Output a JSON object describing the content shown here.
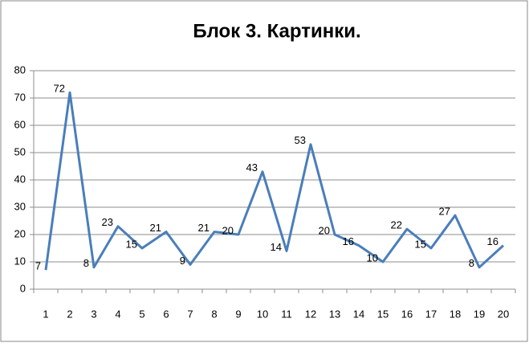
{
  "chart_data": {
    "type": "line",
    "title": "Блок 3. Картинки.",
    "categories": [
      1,
      2,
      3,
      4,
      5,
      6,
      7,
      8,
      9,
      10,
      11,
      12,
      13,
      14,
      15,
      16,
      17,
      18,
      19,
      20
    ],
    "values": [
      7,
      72,
      8,
      23,
      15,
      21,
      9,
      21,
      20,
      43,
      14,
      53,
      20,
      16,
      10,
      22,
      15,
      27,
      8,
      16
    ],
    "color": "#4a7ebb",
    "ylim": [
      0,
      80
    ],
    "yticks": [
      0,
      10,
      20,
      30,
      40,
      50,
      60,
      70,
      80
    ],
    "grid": true
  }
}
